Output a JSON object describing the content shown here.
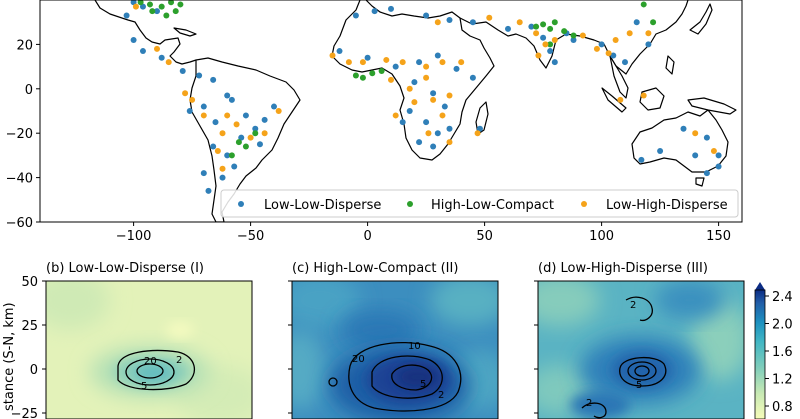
{
  "colors": {
    "low_low_disperse": "#2f7fb8",
    "high_low_compact": "#2ca02c",
    "low_high_disperse": "#f5a31a"
  },
  "chart_data": [
    {
      "type": "scatter",
      "title": "",
      "xlabel": "",
      "ylabel": "",
      "xlim": [
        -140,
        160
      ],
      "ylim": [
        -60,
        40
      ],
      "xticks": [
        "−100",
        "−50",
        "0",
        "50",
        "100",
        "150"
      ],
      "xtick_values": [
        -100,
        -50,
        0,
        50,
        100,
        150
      ],
      "yticks": [
        "20",
        "0",
        "−20",
        "−40",
        "−60"
      ],
      "ytick_values": [
        20,
        0,
        -20,
        -40,
        -60
      ],
      "legend": [
        "Low-Low-Disperse",
        "High-Low-Compact",
        "Low-High-Disperse"
      ],
      "legend_position": "lower-right",
      "series": [
        {
          "name": "Low-Low-Disperse",
          "points": [
            [
              -100,
              39
            ],
            [
              -103,
              33
            ],
            [
              -96,
              37
            ],
            [
              -90,
              35
            ],
            [
              -100,
              22
            ],
            [
              -96,
              17
            ],
            [
              -88,
              14
            ],
            [
              -79,
              8
            ],
            [
              -72,
              6
            ],
            [
              -66,
              4
            ],
            [
              -60,
              -3
            ],
            [
              -70,
              -8
            ],
            [
              -76,
              -10
            ],
            [
              -65,
              -15
            ],
            [
              -58,
              -5
            ],
            [
              -52,
              -12
            ],
            [
              -48,
              -18
            ],
            [
              -54,
              -22
            ],
            [
              -46,
              -25
            ],
            [
              -60,
              -30
            ],
            [
              -66,
              -26
            ],
            [
              -57,
              -35
            ],
            [
              -70,
              -38
            ],
            [
              -68,
              -46
            ],
            [
              -62,
              -40
            ],
            [
              -44,
              -14
            ],
            [
              -40,
              -8
            ],
            [
              -5,
              33
            ],
            [
              3,
              35
            ],
            [
              10,
              36
            ],
            [
              25,
              33
            ],
            [
              35,
              31
            ],
            [
              45,
              30
            ],
            [
              -12,
              17
            ],
            [
              0,
              14
            ],
            [
              12,
              10
            ],
            [
              22,
              12
            ],
            [
              30,
              15
            ],
            [
              38,
              9
            ],
            [
              45,
              5
            ],
            [
              20,
              3
            ],
            [
              28,
              -2
            ],
            [
              33,
              -8
            ],
            [
              18,
              -10
            ],
            [
              25,
              -15
            ],
            [
              30,
              -20
            ],
            [
              35,
              -18
            ],
            [
              22,
              -24
            ],
            [
              28,
              -26
            ],
            [
              15,
              -15
            ],
            [
              48,
              -18
            ],
            [
              60,
              27
            ],
            [
              70,
              28
            ],
            [
              75,
              23
            ],
            [
              78,
              17
            ],
            [
              80,
              12
            ],
            [
              85,
              25
            ],
            [
              88,
              22
            ],
            [
              100,
              20
            ],
            [
              105,
              15
            ],
            [
              110,
              12
            ],
            [
              120,
              20
            ],
            [
              115,
              30
            ],
            [
              135,
              -18
            ],
            [
              145,
              -22
            ],
            [
              150,
              -30
            ],
            [
              140,
              -30
            ],
            [
              125,
              -28
            ],
            [
              117,
              -32
            ],
            [
              145,
              -38
            ],
            [
              150,
              -35
            ]
          ]
        },
        {
          "name": "High-Low-Compact",
          "points": [
            [
              -97,
              39
            ],
            [
              -93,
              38
            ],
            [
              -88,
              37
            ],
            [
              -84,
              39
            ],
            [
              -80,
              38
            ],
            [
              -92,
              35
            ],
            [
              -86,
              33
            ],
            [
              -82,
              35
            ],
            [
              -55,
              -24
            ],
            [
              -52,
              -26
            ],
            [
              -48,
              -20
            ],
            [
              -58,
              -30
            ],
            [
              -5,
              6
            ],
            [
              -2,
              5
            ],
            [
              2,
              7
            ],
            [
              6,
              8
            ],
            [
              72,
              28
            ],
            [
              75,
              29
            ],
            [
              78,
              27
            ],
            [
              80,
              30
            ],
            [
              84,
              26
            ],
            [
              88,
              24
            ],
            [
              78,
              20
            ],
            [
              122,
              30
            ],
            [
              118,
              38
            ]
          ]
        },
        {
          "name": "Low-High-Disperse",
          "points": [
            [
              -99,
              37
            ],
            [
              -90,
              18
            ],
            [
              -85,
              12
            ],
            [
              -78,
              -2
            ],
            [
              -75,
              -5
            ],
            [
              -70,
              -12
            ],
            [
              -62,
              -20
            ],
            [
              -56,
              -16
            ],
            [
              -50,
              -22
            ],
            [
              -60,
              -12
            ],
            [
              -64,
              -28
            ],
            [
              -62,
              -36
            ],
            [
              -44,
              -20
            ],
            [
              -38,
              -10
            ],
            [
              -15,
              15
            ],
            [
              -8,
              12
            ],
            [
              -2,
              12
            ],
            [
              8,
              13
            ],
            [
              15,
              12
            ],
            [
              25,
              10
            ],
            [
              32,
              12
            ],
            [
              40,
              12
            ],
            [
              10,
              4
            ],
            [
              18,
              0
            ],
            [
              25,
              5
            ],
            [
              28,
              -5
            ],
            [
              35,
              -3
            ],
            [
              20,
              -6
            ],
            [
              12,
              -12
            ],
            [
              32,
              -12
            ],
            [
              26,
              -20
            ],
            [
              35,
              -24
            ],
            [
              47,
              -20
            ],
            [
              30,
              30
            ],
            [
              52,
              32
            ],
            [
              65,
              30
            ],
            [
              72,
              25
            ],
            [
              76,
              20
            ],
            [
              73,
              15
            ],
            [
              80,
              22
            ],
            [
              92,
              24
            ],
            [
              98,
              18
            ],
            [
              103,
              16
            ],
            [
              106,
              22
            ],
            [
              112,
              25
            ],
            [
              120,
              25
            ],
            [
              108,
              -5
            ],
            [
              118,
              -3
            ],
            [
              148,
              -28
            ],
            [
              140,
              -20
            ]
          ]
        }
      ]
    },
    {
      "type": "heatmap",
      "title": "(b) Low-Low-Disperse (I)",
      "xlabel": "",
      "ylabel": "Distance (S-N, km)",
      "ylabel_visible": "stance (S-N, km)",
      "yticks": [
        "50",
        "25",
        "0",
        "−25"
      ],
      "ytick_values": [
        50,
        25,
        0,
        -25
      ],
      "contour_labels": [
        "20",
        "5",
        "2"
      ],
      "intensity": "low"
    },
    {
      "type": "heatmap",
      "title": "(c) High-Low-Compact (II)",
      "contour_labels": [
        "20",
        "10",
        "5",
        "2"
      ],
      "intensity": "high"
    },
    {
      "type": "heatmap",
      "title": "(d) Low-High-Disperse (III)",
      "contour_labels": [
        "2",
        "5",
        "2"
      ],
      "intensity": "medium"
    },
    {
      "type": "colorbar",
      "ticks": [
        "2.4",
        "2.0",
        "1.6",
        "1.2",
        "0.8"
      ],
      "tick_values": [
        2.4,
        2.0,
        1.6,
        1.2,
        0.8
      ]
    }
  ]
}
